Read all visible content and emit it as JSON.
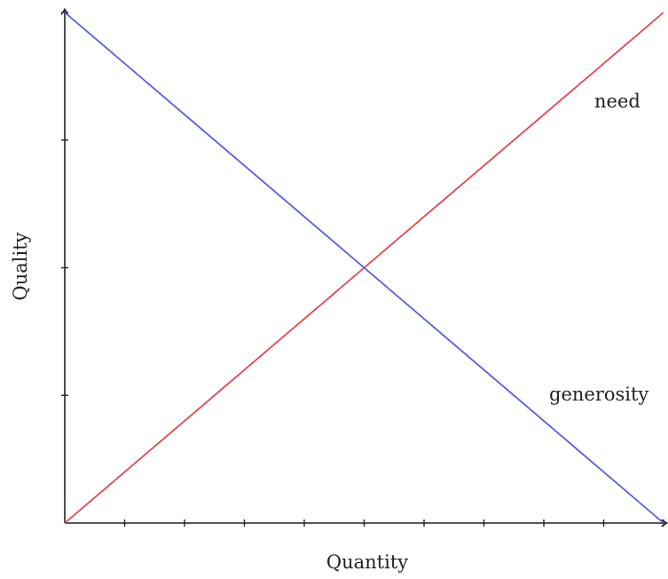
{
  "chart_data": {
    "type": "line",
    "title": "",
    "xlabel": "Quantity",
    "ylabel": "Quality",
    "xlim": [
      0,
      10
    ],
    "ylim": [
      0,
      4
    ],
    "x_ticks": [
      0,
      1,
      2,
      3,
      4,
      5,
      6,
      7,
      8,
      9,
      10
    ],
    "y_ticks": [
      0,
      1,
      2,
      3,
      4
    ],
    "tick_labels_shown": false,
    "grid": false,
    "series": [
      {
        "name": "need",
        "color": "#e0474c",
        "x": [
          0,
          10
        ],
        "y": [
          0,
          4
        ]
      },
      {
        "name": "generosity",
        "color": "#5a5ae6",
        "x": [
          0,
          10
        ],
        "y": [
          4,
          0
        ]
      }
    ]
  }
}
